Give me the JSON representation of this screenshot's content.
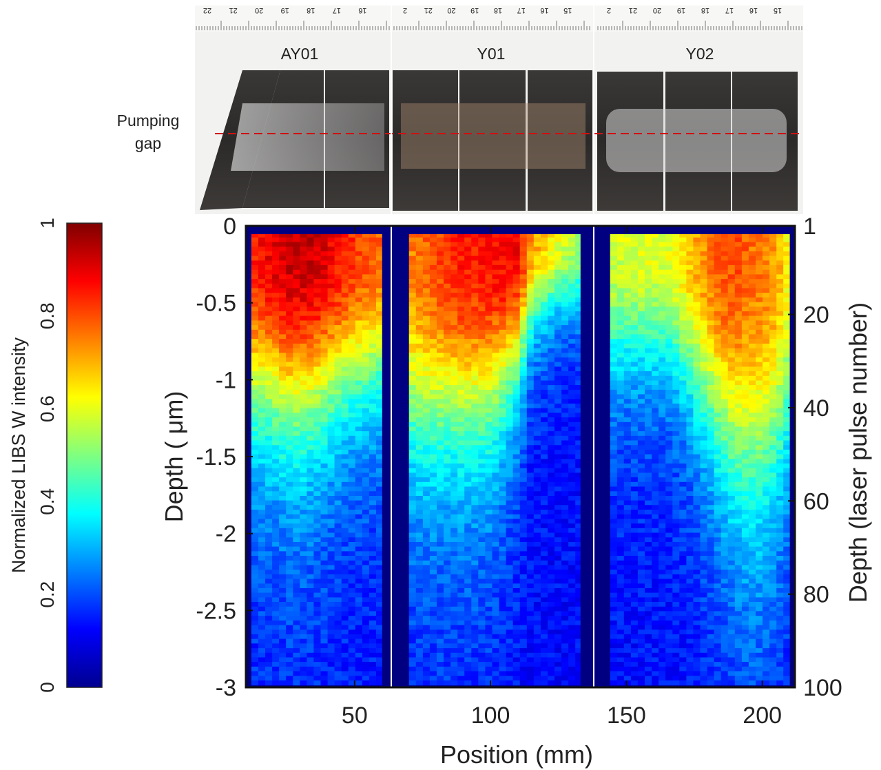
{
  "photo": {
    "labels": [
      "AY01",
      "Y01",
      "Y02"
    ],
    "pumping_gap_label": [
      "Pumping",
      "gap"
    ],
    "ruler_ticks": [
      [
        "22",
        "21",
        "20",
        "19",
        "18",
        "17",
        "16"
      ],
      [
        "2",
        "21",
        "20",
        "19",
        "18",
        "17",
        "16",
        "15"
      ],
      [
        "2",
        "21",
        "20",
        "19",
        "18",
        "17",
        "16",
        "15"
      ]
    ]
  },
  "colors": {
    "axis": "#111111",
    "gap_line": "#d01010",
    "divider": "#ffffff",
    "plot_bg": "#000080",
    "colormap": "jet"
  },
  "chart_data": {
    "type": "heatmap",
    "title": "",
    "xlabel": "Position (mm)",
    "ylabel": "Depth ( μm)",
    "ylabel_right": "Depth (laser pulse number)",
    "colorbar_label": "Normalized LIBS W intensity",
    "xlim": [
      10,
      212
    ],
    "ylim": [
      -3,
      0
    ],
    "xticks": [
      50,
      100,
      150,
      200
    ],
    "yticks": [
      0,
      -0.5,
      -1,
      -1.5,
      -2,
      -2.5,
      -3
    ],
    "yticks_right": [
      1,
      20,
      40,
      60,
      80,
      100
    ],
    "colorbar_ticks": [
      0,
      0.2,
      0.4,
      0.6,
      0.8,
      1
    ],
    "colorbar_range": [
      0,
      1
    ],
    "samples": [
      "AY01",
      "Y01",
      "Y02"
    ],
    "sample_dividers_mm": [
      64,
      139.5
    ],
    "pulse_count": 100,
    "y_per_pulse_um": 0.03,
    "gaps_mm": [
      [
        60,
        70
      ],
      [
        133,
        144
      ],
      [
        210,
        212
      ]
    ],
    "profiles": [
      {
        "name": "AY01",
        "x": [
          12,
          15,
          20,
          25,
          30,
          35,
          40,
          45,
          50,
          55,
          60
        ],
        "surface": [
          0.84,
          0.87,
          0.9,
          0.93,
          0.93,
          0.93,
          0.9,
          0.86,
          0.82,
          0.8,
          0.78
        ],
        "decay_um": [
          1.15,
          1.15,
          1.15,
          1.2,
          1.2,
          1.15,
          1.1,
          1.05,
          1.0,
          1.0,
          0.95
        ]
      },
      {
        "name": "Y01",
        "x": [
          70,
          75,
          80,
          85,
          90,
          95,
          100,
          105,
          110,
          115,
          120,
          125,
          130,
          133
        ],
        "surface": [
          0.74,
          0.77,
          0.8,
          0.84,
          0.86,
          0.85,
          0.87,
          0.88,
          0.88,
          0.73,
          0.68,
          0.6,
          0.56,
          0.52
        ],
        "decay_um": [
          1.3,
          1.3,
          1.3,
          1.25,
          1.25,
          1.25,
          1.2,
          1.05,
          0.9,
          0.6,
          0.55,
          0.5,
          0.5,
          0.5
        ]
      },
      {
        "name": "Y02",
        "x": [
          144,
          150,
          155,
          160,
          165,
          170,
          175,
          180,
          185,
          190,
          195,
          200,
          205,
          210
        ],
        "surface": [
          0.58,
          0.58,
          0.6,
          0.6,
          0.6,
          0.64,
          0.7,
          0.75,
          0.8,
          0.8,
          0.77,
          0.75,
          0.72,
          0.62
        ],
        "decay_um": [
          0.9,
          0.85,
          0.85,
          0.85,
          0.85,
          0.95,
          1.05,
          1.2,
          1.35,
          1.5,
          1.6,
          1.6,
          1.5,
          1.3
        ]
      }
    ]
  }
}
